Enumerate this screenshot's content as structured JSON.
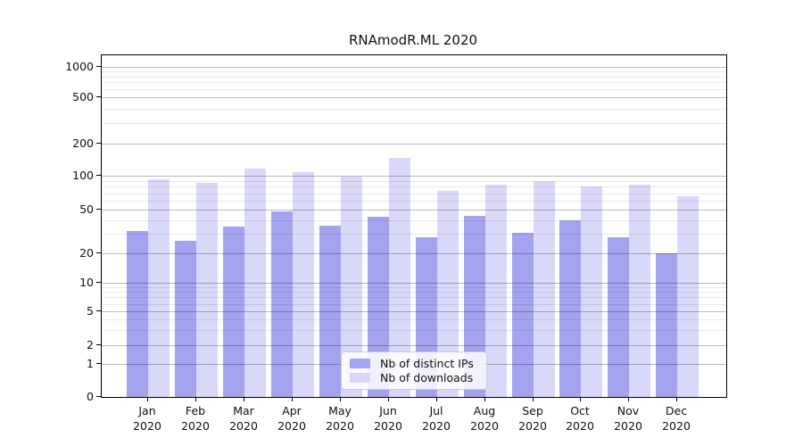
{
  "title": "RNAmodR.ML 2020",
  "chart_data": {
    "type": "bar",
    "title": "RNAmodR.ML 2020",
    "categories": [
      "Jan",
      "Feb",
      "Mar",
      "Apr",
      "May",
      "Jun",
      "Jul",
      "Aug",
      "Sep",
      "Oct",
      "Nov",
      "Dec"
    ],
    "year_label": "2020",
    "series": [
      {
        "name": "Nb of distinct IPs",
        "color": "#a3a3ef",
        "values": [
          32,
          26,
          35,
          48,
          36,
          43,
          28,
          44,
          31,
          40,
          28,
          20
        ]
      },
      {
        "name": "Nb of downloads",
        "color": "#d8d8f8",
        "values": [
          93,
          87,
          116,
          108,
          99,
          146,
          73,
          83,
          89,
          81,
          83,
          66
        ]
      }
    ],
    "y_scale": "symlog",
    "y_ticks": [
      0,
      1,
      2,
      5,
      10,
      20,
      50,
      100,
      200,
      500,
      1000
    ],
    "y_minor_ticks": [
      3,
      4,
      6,
      7,
      8,
      9,
      30,
      40,
      60,
      70,
      80,
      90,
      300,
      400,
      600,
      700,
      800,
      900
    ],
    "ylim": [
      0,
      1300
    ],
    "grid": true,
    "legend_position": "inside-bottom-center"
  },
  "colors": {
    "bar_distinct_ips": "#a3a3ef",
    "bar_downloads": "#d8d8f8",
    "grid_major": "#b9b9b9",
    "grid_minor": "#e9e9e9",
    "spine": "#000000",
    "background": "#ffffff"
  }
}
